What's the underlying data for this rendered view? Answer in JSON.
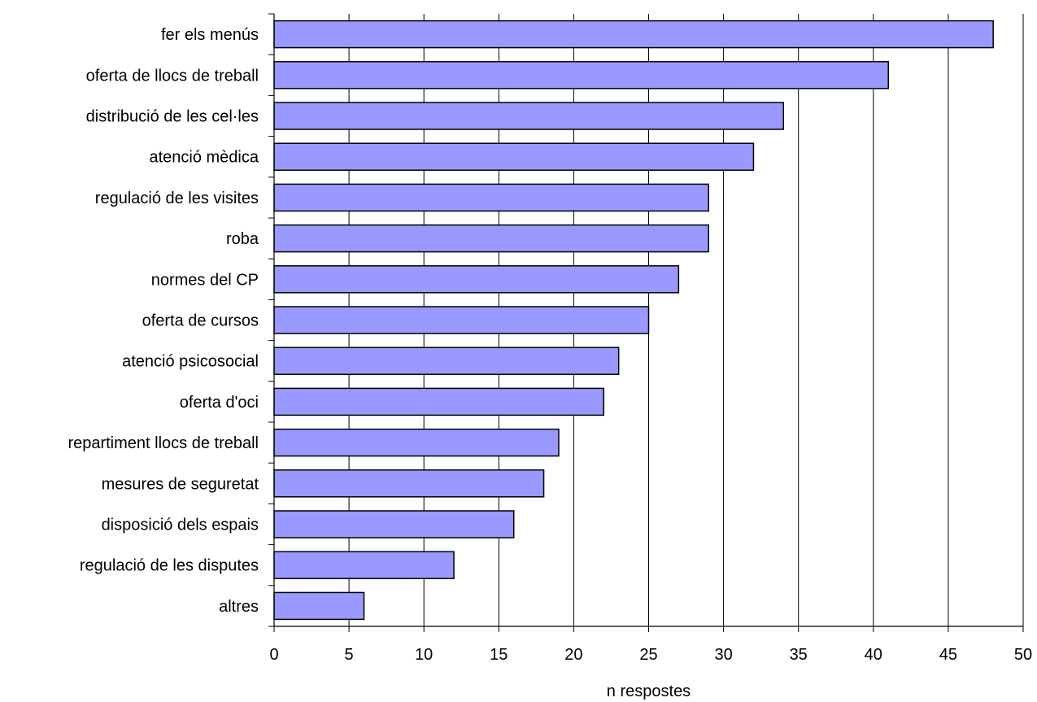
{
  "chart_data": {
    "type": "bar",
    "orientation": "horizontal",
    "categories": [
      "fer els menús",
      "oferta de llocs de treball",
      "distribució de les cel·les",
      "atenció mèdica",
      "regulació de les visites",
      "roba",
      "normes del CP",
      "oferta de cursos",
      "atenció psicosocial",
      "oferta d'oci",
      "repartiment llocs de treball",
      "mesures de seguretat",
      "disposició dels espais",
      "regulació de les disputes",
      "altres"
    ],
    "values": [
      48,
      41,
      34,
      32,
      29,
      29,
      27,
      25,
      23,
      22,
      19,
      18,
      16,
      12,
      6
    ],
    "xlabel": "n respostes",
    "xlim": [
      0,
      50
    ],
    "xticks": [
      0,
      5,
      10,
      15,
      20,
      25,
      30,
      35,
      40,
      45,
      50
    ],
    "grid": "vertical",
    "legend": "none",
    "bar_color": "#9999ff",
    "bar_edge_color": "#000000"
  }
}
